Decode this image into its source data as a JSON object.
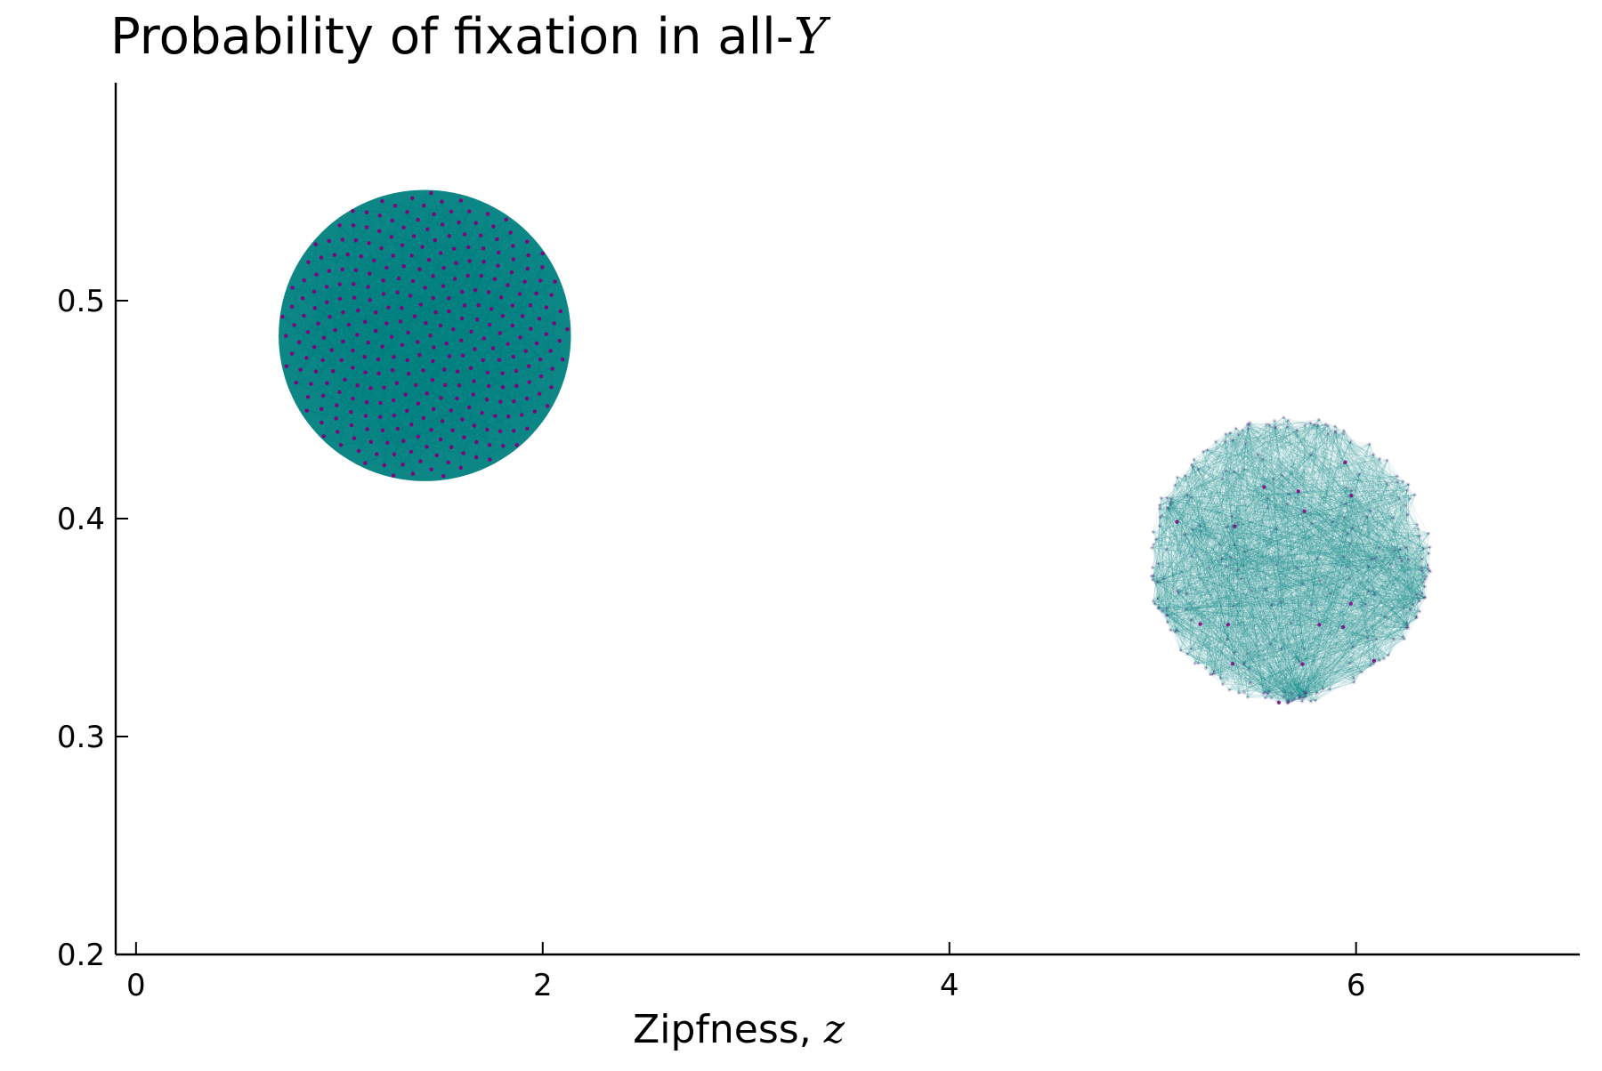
{
  "chart_data": {
    "type": "scatter",
    "title": {
      "prefix": "Probability of fixation in all-",
      "math": "Y"
    },
    "xlabel": {
      "prefix": "Zipfness, ",
      "math": "z"
    },
    "ylabel": "",
    "xlim": [
      -0.1,
      7.1
    ],
    "ylim": [
      0.2,
      0.6
    ],
    "xticks": [
      0,
      2,
      4,
      6
    ],
    "yticks": [
      0.2,
      0.3,
      0.4,
      0.5
    ],
    "xtick_labels": [
      "0",
      "2",
      "4",
      "6"
    ],
    "ytick_labels": [
      "0.2",
      "0.3",
      "0.4",
      "0.5"
    ],
    "grid": false,
    "legend": "none",
    "colors": {
      "edge": "#008080",
      "node": "#800080",
      "axis": "#000000"
    },
    "series": [
      {
        "style": "dense-lattice",
        "center": [
          1.42,
          0.484
        ],
        "radius_x": 0.71,
        "radius_y": 0.066,
        "node_count": 330,
        "edge_opacity": 0.55,
        "node_opacity": 1.0
      },
      {
        "style": "sparse-random",
        "center": [
          5.67,
          0.381
        ],
        "radius_x": 0.7,
        "radius_y": 0.066,
        "node_count": 300,
        "edge_count": 3200,
        "edge_opacity": 0.12,
        "node_opacity": 0.2
      }
    ]
  }
}
